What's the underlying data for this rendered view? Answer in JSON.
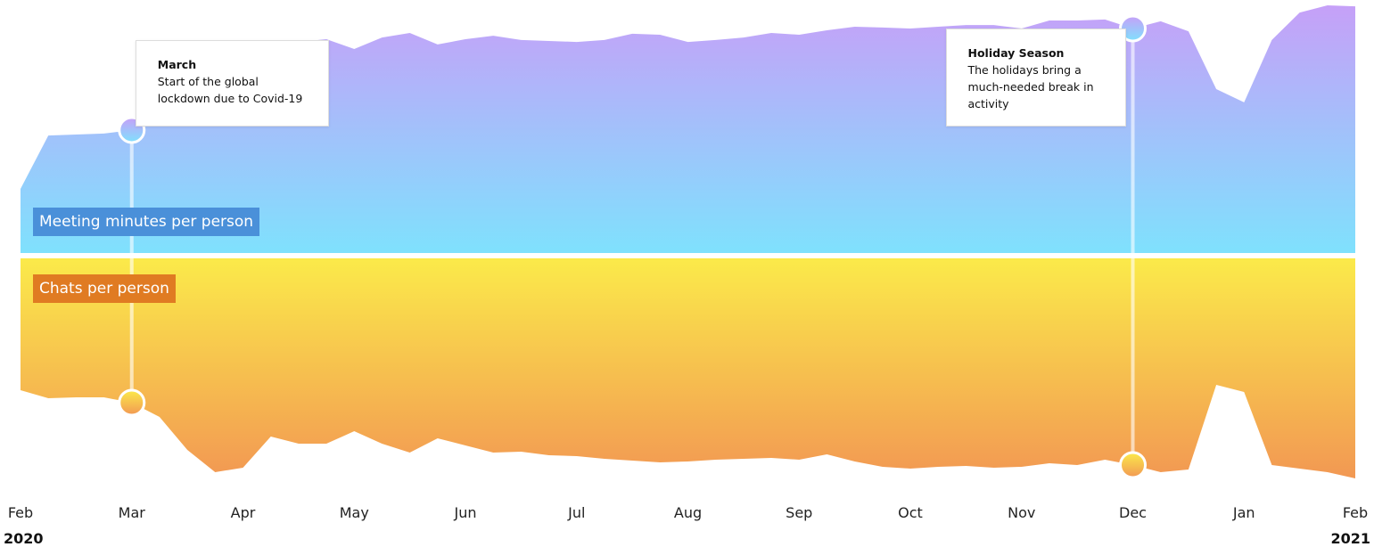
{
  "chart_data": {
    "type": "mirrored-area",
    "x": [
      0,
      0.25,
      0.5,
      0.75,
      1,
      1.25,
      1.5,
      1.75,
      2,
      2.25,
      2.5,
      2.75,
      3,
      3.25,
      3.5,
      3.75,
      4,
      4.25,
      4.5,
      4.75,
      5,
      5.25,
      5.5,
      5.75,
      6,
      6.25,
      6.5,
      6.75,
      7,
      7.25,
      7.5,
      7.75,
      8,
      8.25,
      8.5,
      8.75,
      9,
      9.25,
      9.5,
      9.75,
      10,
      10.25,
      10.5,
      10.75,
      11,
      11.25,
      11.5,
      11.75,
      12
    ],
    "xlim": [
      0,
      12
    ],
    "xticks": [
      {
        "value": 0,
        "label": "Feb"
      },
      {
        "value": 1,
        "label": "Mar"
      },
      {
        "value": 2,
        "label": "Apr"
      },
      {
        "value": 3,
        "label": "May"
      },
      {
        "value": 4,
        "label": "Jun"
      },
      {
        "value": 5,
        "label": "Jul"
      },
      {
        "value": 6,
        "label": "Aug"
      },
      {
        "value": 7,
        "label": "Sep"
      },
      {
        "value": 8,
        "label": "Oct"
      },
      {
        "value": 9,
        "label": "Nov"
      },
      {
        "value": 10,
        "label": "Dec"
      },
      {
        "value": 11,
        "label": "Jan"
      },
      {
        "value": 12,
        "label": "Feb"
      }
    ],
    "year_labels": [
      {
        "value": 0,
        "label": "2020"
      },
      {
        "value": 12,
        "label": "2021"
      }
    ],
    "ylim": [
      0,
      100
    ],
    "series": [
      {
        "name": "Meeting minutes per person",
        "direction": "up",
        "color": [
          "#c6a0f8",
          "#7fe1fd"
        ],
        "label_color": "#4a90d9",
        "values": [
          25.7,
          47.1,
          47.5,
          47.9,
          49.3,
          60.4,
          71,
          78,
          81.8,
          83.6,
          84.6,
          85.7,
          81.8,
          86.4,
          88.2,
          83.6,
          85.7,
          87.1,
          85.4,
          85,
          84.6,
          85.4,
          87.9,
          87.5,
          84.6,
          85.4,
          86.4,
          88.2,
          87.5,
          89.3,
          90.7,
          90.4,
          90,
          90.7,
          91.4,
          91.4,
          90,
          93.2,
          93.2,
          93.6,
          90,
          92.9,
          88.9,
          65.7,
          60.4,
          85.4,
          96.4,
          99.3,
          98.9
        ]
      },
      {
        "name": "Chats per person",
        "direction": "down",
        "color": [
          "#fbea4a",
          "#f29853"
        ],
        "label_color": "#e07b22",
        "values": [
          59.2,
          62.8,
          62.4,
          62.4,
          64.8,
          71.2,
          86,
          96,
          94,
          80,
          83.2,
          83.2,
          77.6,
          83.2,
          87.2,
          80.8,
          84,
          87.2,
          86.8,
          88.4,
          88.8,
          90,
          90.8,
          91.6,
          91.2,
          90.4,
          90,
          89.6,
          90.4,
          88,
          91.2,
          93.6,
          94.4,
          93.6,
          93.2,
          94,
          93.6,
          92,
          92.8,
          90.4,
          92.8,
          96,
          94.8,
          56.8,
          60,
          92.8,
          94.4,
          96,
          98.8
        ]
      }
    ],
    "annotations": [
      {
        "x": 1,
        "title": "March",
        "text": "Start of the global lockdown due to Covid-19"
      },
      {
        "x": 10,
        "title": "Holiday Season",
        "text": "The holidays bring a much-needed break in activity"
      }
    ]
  }
}
